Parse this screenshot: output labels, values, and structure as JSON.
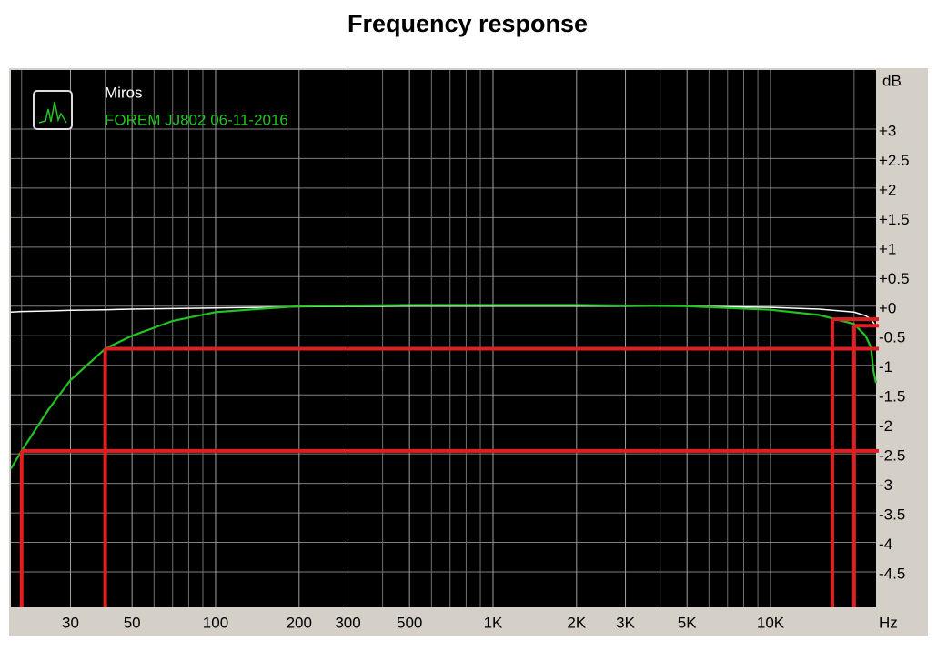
{
  "chart_data": {
    "type": "line",
    "title": "Frequency response",
    "x_label": "Hz",
    "y_label": "dB",
    "log_x": true,
    "grid": true,
    "xlim": [
      18.3,
      24000
    ],
    "ylim": [
      -5.1,
      4
    ],
    "xticks": [
      30,
      50,
      100,
      200,
      300,
      500,
      {
        "value": 1000,
        "label": "1K"
      },
      {
        "value": 2000,
        "label": "2K"
      },
      {
        "value": 3000,
        "label": "3K"
      },
      {
        "value": 5000,
        "label": "5K"
      },
      {
        "value": 10000,
        "label": "10K"
      }
    ],
    "x_minor_ticks": [
      20,
      40,
      60,
      70,
      80,
      90,
      400,
      600,
      700,
      800,
      900,
      4000,
      6000,
      7000,
      8000,
      9000,
      20000
    ],
    "yticks": [
      {
        "value": 3,
        "label": "+3"
      },
      {
        "value": 2.5,
        "label": "+2.5"
      },
      {
        "value": 2,
        "label": "+2"
      },
      {
        "value": 1.5,
        "label": "+1.5"
      },
      {
        "value": 1,
        "label": "+1"
      },
      {
        "value": 0.5,
        "label": "+0.5"
      },
      {
        "value": 0,
        "label": "+0"
      },
      -0.5,
      -1,
      -1.5,
      -2,
      -2.5,
      -3,
      -3.5,
      -4,
      -4.5
    ],
    "x": [
      18.3,
      20,
      25,
      30,
      40,
      50,
      70,
      100,
      150,
      200,
      500,
      1000,
      2000,
      5000,
      10000,
      15000,
      20000,
      22000,
      23000,
      23500,
      24000
    ],
    "series": [
      {
        "name": "Miros",
        "color": "#ffffff",
        "values": [
          -0.1,
          -0.09,
          -0.08,
          -0.07,
          -0.06,
          -0.05,
          -0.04,
          -0.03,
          -0.02,
          -0.01,
          0,
          0,
          0,
          0,
          -0.02,
          -0.05,
          -0.1,
          -0.16,
          -0.22,
          -0.28,
          -0.35
        ]
      },
      {
        "name": "FOREM JJ802 06-11-2016",
        "color": "#22c322",
        "values": [
          -2.75,
          -2.45,
          -1.75,
          -1.25,
          -0.72,
          -0.5,
          -0.25,
          -0.1,
          -0.04,
          0,
          0.02,
          0.02,
          0.02,
          0,
          -0.06,
          -0.15,
          -0.3,
          -0.5,
          -0.7,
          -1.1,
          -1.3
        ]
      }
    ],
    "annotation_color": "#e02020",
    "annotation_lines": [
      {
        "x": 20,
        "y": -2.45
      },
      {
        "x": 40,
        "y": -0.72
      },
      {
        "x": 16700,
        "y": -0.22
      },
      {
        "x": 20000,
        "y": -0.33
      }
    ]
  }
}
